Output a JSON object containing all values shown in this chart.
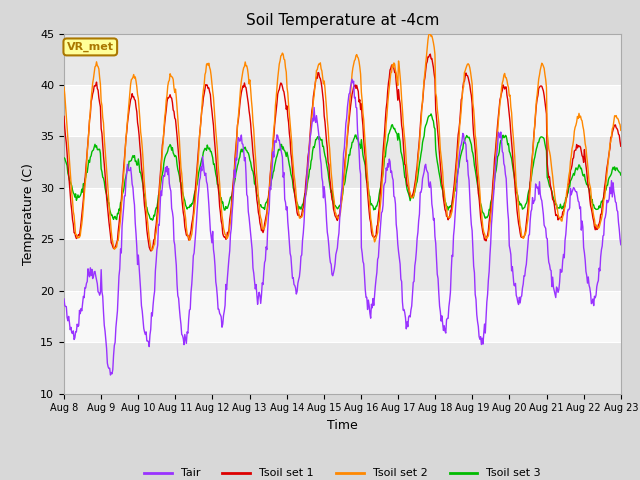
{
  "title": "Soil Temperature at -4cm",
  "xlabel": "Time",
  "ylabel": "Temperature (C)",
  "ylim": [
    10,
    45
  ],
  "background_color": "#d8d8d8",
  "plot_bg_color": "#ffffff",
  "grid_color": "#cccccc",
  "band_colors": [
    "#e8e8e8",
    "#f8f8f8"
  ],
  "colors": {
    "Tair": "#9933ff",
    "Tsoil1": "#dd0000",
    "Tsoil2": "#ff8800",
    "Tsoil3": "#00bb00"
  },
  "legend_labels": [
    "Tair",
    "Tsoil set 1",
    "Tsoil set 2",
    "Tsoil set 3"
  ],
  "annotation_text": "VR_met",
  "annotation_bg": "#ffff99",
  "annotation_border": "#aa7700",
  "x_tick_labels": [
    "Aug 8",
    "Aug 9",
    "Aug 10",
    "Aug 11",
    "Aug 12",
    "Aug 13",
    "Aug 14",
    "Aug 15",
    "Aug 16",
    "Aug 17",
    "Aug 18",
    "Aug 19",
    "Aug 20",
    "Aug 21",
    "Aug 22",
    "Aug 23"
  ],
  "yticks": [
    10,
    15,
    20,
    25,
    30,
    35,
    40,
    45
  ],
  "num_days": 16
}
